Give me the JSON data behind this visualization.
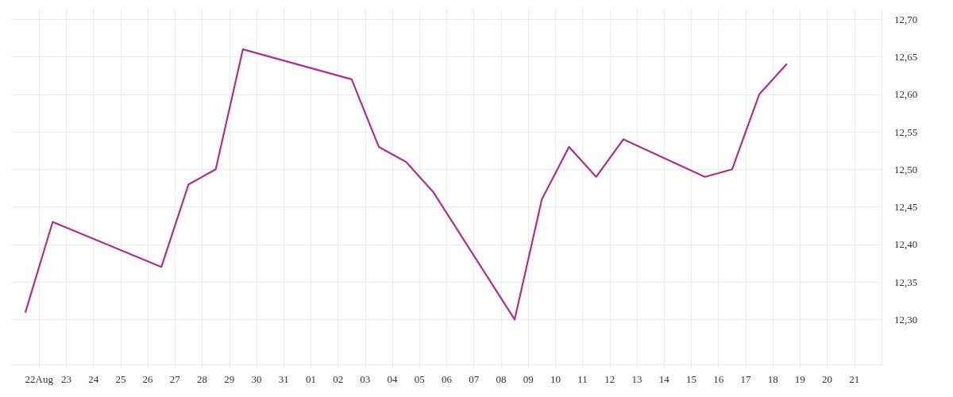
{
  "chart_data": {
    "type": "line",
    "x": [
      "--08-21T12:00",
      "--08-22T12:00",
      "--08-26T12:00",
      "--08-27T12:00",
      "--08-28T12:00",
      "--08-29T12:00",
      "--09-02T12:00",
      "--09-03T12:00",
      "--09-04T12:00",
      "--09-05T12:00",
      "--09-08T12:00",
      "--09-09T12:00",
      "--09-10T12:00",
      "--09-11T12:00",
      "--09-12T12:00",
      "--09-15T12:00",
      "--09-16T12:00",
      "--09-17T12:00",
      "--09-18T12:00"
    ],
    "series": [
      {
        "color": "#b0308a",
        "values": [
          12.31,
          12.43,
          12.37,
          12.48,
          12.5,
          12.66,
          12.62,
          12.53,
          12.51,
          12.47,
          12.3,
          12.46,
          12.53,
          12.49,
          12.54,
          12.49,
          12.5,
          12.6,
          12.64
        ]
      }
    ],
    "xlim": [
      "--08-21",
      "--09-22"
    ],
    "xticks": [
      {
        "value": "--08-22",
        "label": "22Aug"
      },
      {
        "value": "--08-23",
        "label": "23"
      },
      {
        "value": "--08-24",
        "label": "24"
      },
      {
        "value": "--08-25",
        "label": "25"
      },
      {
        "value": "--08-26",
        "label": "26"
      },
      {
        "value": "--08-27",
        "label": "27"
      },
      {
        "value": "--08-28",
        "label": "28"
      },
      {
        "value": "--08-29",
        "label": "29"
      },
      {
        "value": "--08-30",
        "label": "30"
      },
      {
        "value": "--08-31",
        "label": "31"
      },
      {
        "value": "--09-01",
        "label": "01"
      },
      {
        "value": "--09-02",
        "label": "02"
      },
      {
        "value": "--09-03",
        "label": "03"
      },
      {
        "value": "--09-04",
        "label": "04"
      },
      {
        "value": "--09-05",
        "label": "05"
      },
      {
        "value": "--09-06",
        "label": "06"
      },
      {
        "value": "--09-07",
        "label": "07"
      },
      {
        "value": "--09-08",
        "label": "08"
      },
      {
        "value": "--09-09",
        "label": "09"
      },
      {
        "value": "--09-10",
        "label": "10"
      },
      {
        "value": "--09-11",
        "label": "11"
      },
      {
        "value": "--09-12",
        "label": "12"
      },
      {
        "value": "--09-13",
        "label": "13"
      },
      {
        "value": "--09-14",
        "label": "14"
      },
      {
        "value": "--09-15",
        "label": "15"
      },
      {
        "value": "--09-16",
        "label": "16"
      },
      {
        "value": "--09-17",
        "label": "17"
      },
      {
        "value": "--09-18",
        "label": "18"
      },
      {
        "value": "--09-19",
        "label": "19"
      },
      {
        "value": "--09-20",
        "label": "20"
      },
      {
        "value": "--09-21",
        "label": "21"
      }
    ],
    "ylim": [
      12.24,
      12.713
    ],
    "yticks": [
      {
        "value": 12.3,
        "label": "12,30"
      },
      {
        "value": 12.35,
        "label": "12,35"
      },
      {
        "value": 12.4,
        "label": "12,40"
      },
      {
        "value": 12.45,
        "label": "12,45"
      },
      {
        "value": 12.5,
        "label": "12,50"
      },
      {
        "value": 12.55,
        "label": "12,55"
      },
      {
        "value": 12.6,
        "label": "12,60"
      },
      {
        "value": 12.65,
        "label": "12,65"
      },
      {
        "value": 12.7,
        "label": "12,70"
      }
    ],
    "grid": true,
    "marker": "none",
    "line_style": "solid"
  }
}
